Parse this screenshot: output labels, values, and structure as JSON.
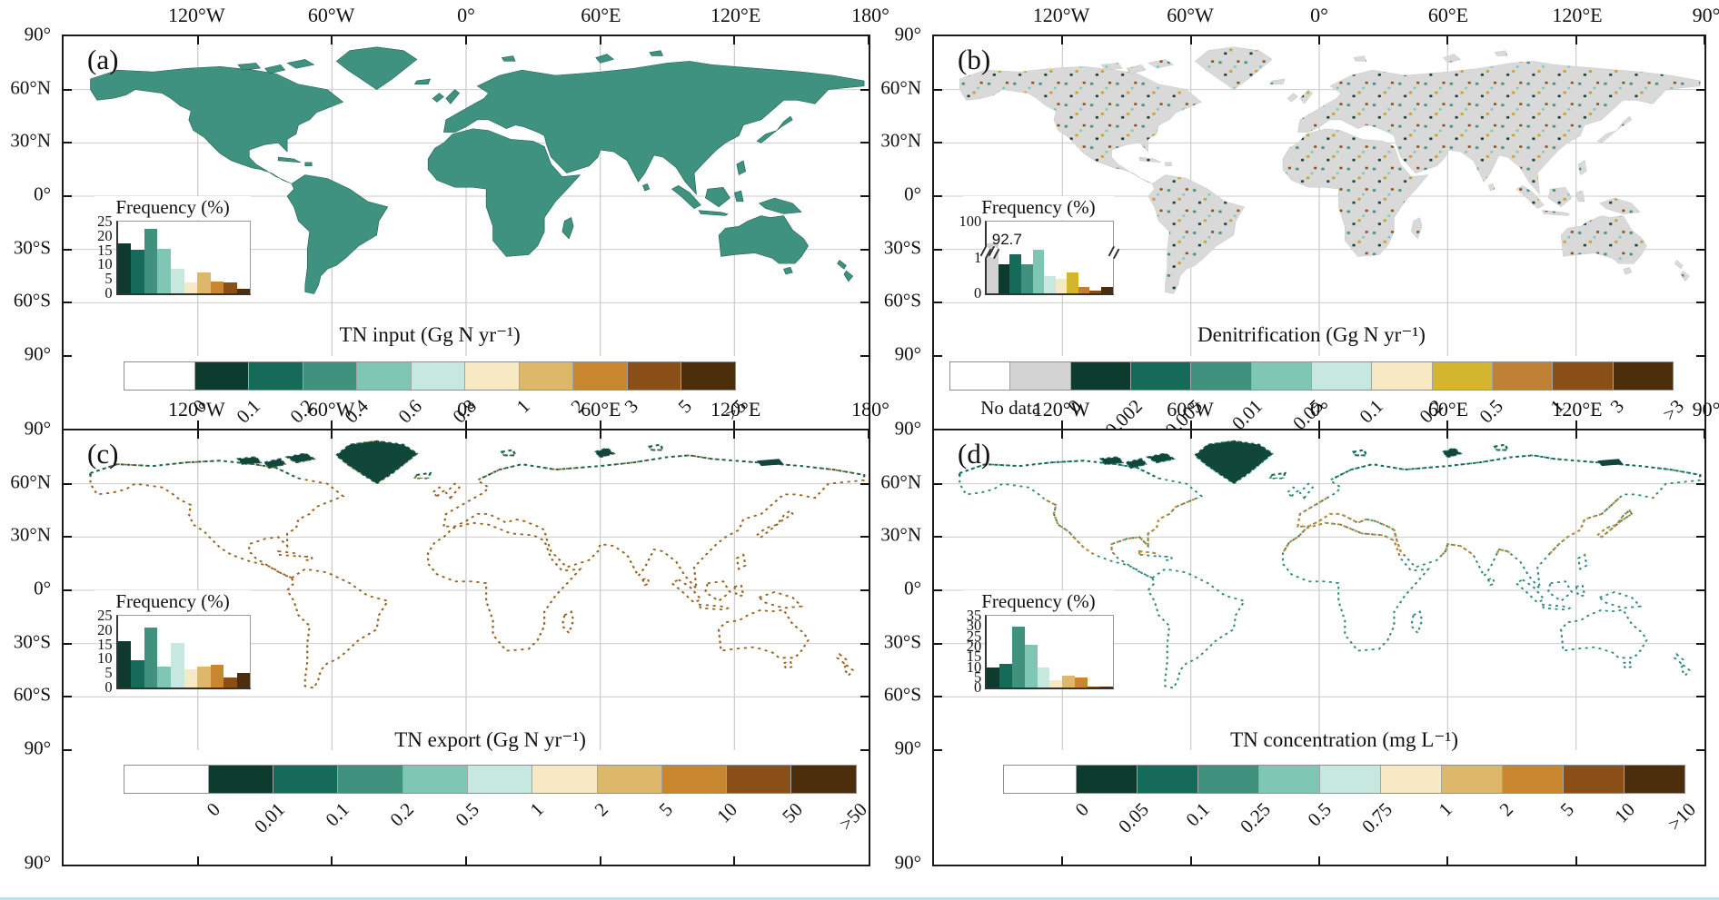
{
  "figure": {
    "background": "#ffffff",
    "bottom_rule_color": "#b7e1ee",
    "description_labels": [
      "(a)",
      "(b)",
      "(c)",
      "(d)"
    ]
  },
  "panels": [
    {
      "letter": "(a)",
      "top_axis": [
        "120°W",
        "60°W",
        "0°",
        "60°E",
        "120°E",
        "180°"
      ],
      "left_axis": [
        "90°",
        "60°N",
        "30°N",
        "0°",
        "30°S",
        "60°S",
        "90°"
      ],
      "inset": {
        "title": "Frequency (%)",
        "y_ticks": [
          "25",
          "20",
          "15",
          "10",
          "5",
          "0"
        ],
        "values": [
          17.3,
          15.2,
          22.5,
          15.6,
          8.7,
          3.8,
          7.2,
          4.2,
          3.8,
          1.5
        ],
        "unit_pct": 4,
        "bar_colors": [
          "#0d3b2d",
          "#156a5a",
          "#41917f",
          "#7fc6b4",
          "#c6e8de",
          "#f6e9c4",
          "#ddb76a",
          "#c8862f",
          "#8a4f16",
          "#4c2d0c"
        ]
      },
      "colorbar": {
        "title": "TN input (Gg N yr⁻¹)",
        "labels": [
          "0",
          "0.1",
          "0.2",
          "0.4",
          "0.6",
          "0.8",
          "1",
          "2",
          "3",
          "5",
          ">5"
        ],
        "lead_count": 1,
        "segments": [
          {
            "c": "#ffffff",
            "w": 1.3
          },
          {
            "c": "#0d3b2d",
            "w": 1
          },
          {
            "c": "#156a5a",
            "w": 1
          },
          {
            "c": "#41917f",
            "w": 1
          },
          {
            "c": "#7fc6b4",
            "w": 1
          },
          {
            "c": "#c6e8de",
            "w": 1
          },
          {
            "c": "#f6e9c4",
            "w": 1
          },
          {
            "c": "#ddb76a",
            "w": 1
          },
          {
            "c": "#c8862f",
            "w": 1
          },
          {
            "c": "#8a4f16",
            "w": 1
          },
          {
            "c": "#4c2d0c",
            "w": 1
          }
        ]
      }
    },
    {
      "letter": "(b)",
      "top_axis": [
        "120°W",
        "60°W",
        "0°",
        "60°E",
        "120°E",
        "90°"
      ],
      "left_axis": [
        "90°",
        "60°N",
        "30°N",
        "0°",
        "30°S",
        "60°S",
        "90°"
      ],
      "inset": {
        "title": "Frequency (%)",
        "y_ticks": [
          "100",
          "1",
          "0"
        ],
        "annotation": "92.7",
        "values": [
          92.7,
          0.9,
          1.2,
          0.9,
          1.35,
          0.55,
          0.45,
          0.65,
          0.2,
          0.1,
          0.2
        ],
        "unit_pct": 45,
        "cap_pct": 70,
        "bar_colors": [
          "#d2d2d2",
          "#0d3b2d",
          "#156a5a",
          "#41917f",
          "#7fc6b4",
          "#c6e8de",
          "#f6e9c4",
          "#d4b62e",
          "#c08035",
          "#8a4f16",
          "#4c2d0c"
        ]
      },
      "colorbar": {
        "title": "Denitrification (Gg N yr⁻¹)",
        "labels": [
          "0",
          "0.002",
          "0.005",
          "0.01",
          "0.05",
          "0.1",
          "0.2",
          "0.5",
          "1",
          "3",
          ">3"
        ],
        "lead_count": 2,
        "no_data": {
          "label": "No data",
          "center_units": 1.0
        },
        "segments": [
          {
            "c": "#ffffff",
            "w": 1
          },
          {
            "c": "#d2d2d2",
            "w": 1
          },
          {
            "c": "#0d3b2d",
            "w": 1
          },
          {
            "c": "#156a5a",
            "w": 1
          },
          {
            "c": "#41917f",
            "w": 1
          },
          {
            "c": "#7fc6b4",
            "w": 1
          },
          {
            "c": "#c6e8de",
            "w": 1
          },
          {
            "c": "#f6e9c4",
            "w": 1
          },
          {
            "c": "#d4b62e",
            "w": 1
          },
          {
            "c": "#c08035",
            "w": 1
          },
          {
            "c": "#8a4f16",
            "w": 1
          },
          {
            "c": "#4c2d0c",
            "w": 1
          }
        ]
      }
    },
    {
      "letter": "(c)",
      "top_axis": [
        "120°W",
        "60°W",
        "0°",
        "60°E",
        "120°E",
        "180°"
      ],
      "left_axis": [
        "90°",
        "60°N",
        "30°N",
        "0°",
        "30°S",
        "60°S",
        "90°"
      ],
      "inset": {
        "title": "Frequency (%)",
        "y_ticks": [
          "25",
          "20",
          "15",
          "10",
          "5",
          "0"
        ],
        "values": [
          16,
          9.5,
          21,
          7.2,
          15.5,
          6.5,
          7.2,
          7.8,
          3.5,
          5.2
        ],
        "unit_pct": 4,
        "bar_colors": [
          "#0d3b2d",
          "#156a5a",
          "#41917f",
          "#7fc6b4",
          "#c6e8de",
          "#f6e9c4",
          "#ddb76a",
          "#c8862f",
          "#8a4f16",
          "#4c2d0c"
        ]
      },
      "colorbar": {
        "title": "TN export (Gg N yr⁻¹)",
        "labels": [
          "0",
          "0.01",
          "0.1",
          "0.2",
          "0.5",
          "1",
          "2",
          "5",
          "10",
          "50",
          ">50"
        ],
        "lead_count": 1,
        "segments": [
          {
            "c": "#ffffff",
            "w": 1.3
          },
          {
            "c": "#0d3b2d",
            "w": 1
          },
          {
            "c": "#156a5a",
            "w": 1
          },
          {
            "c": "#41917f",
            "w": 1
          },
          {
            "c": "#7fc6b4",
            "w": 1
          },
          {
            "c": "#c6e8de",
            "w": 1
          },
          {
            "c": "#f6e9c4",
            "w": 1
          },
          {
            "c": "#ddb76a",
            "w": 1
          },
          {
            "c": "#c8862f",
            "w": 1
          },
          {
            "c": "#8a4f16",
            "w": 1
          },
          {
            "c": "#4c2d0c",
            "w": 1
          }
        ]
      }
    },
    {
      "letter": "(d)",
      "top_axis": [
        "120°W",
        "60°W",
        "0°",
        "60°E",
        "120°E",
        "90°"
      ],
      "left_axis": [
        "90°",
        "60°N",
        "30°N",
        "0°",
        "30°S",
        "60°S",
        "90°"
      ],
      "inset": {
        "title": "Frequency (%)",
        "y_ticks": [
          "35",
          "30",
          "25",
          "20",
          "15",
          "10",
          "5",
          "0"
        ],
        "values": [
          10,
          11.5,
          29.5,
          21,
          10,
          3.5,
          6,
          5,
          0.5,
          0.3
        ],
        "unit_pct": 2.857,
        "bar_colors": [
          "#0d3b2d",
          "#156a5a",
          "#41917f",
          "#7fc6b4",
          "#c6e8de",
          "#f6e9c4",
          "#ddb76a",
          "#c8862f",
          "#8a4f16",
          "#4c2d0c"
        ]
      },
      "colorbar": {
        "title": "TN concentration (mg L⁻¹)",
        "labels": [
          "0",
          "0.05",
          "0.1",
          "0.25",
          "0.5",
          "0.75",
          "1",
          "2",
          "5",
          "10",
          ">10"
        ],
        "lead_count": 1,
        "segments": [
          {
            "c": "#ffffff",
            "w": 1.2
          },
          {
            "c": "#0d3b2d",
            "w": 1
          },
          {
            "c": "#156a5a",
            "w": 1
          },
          {
            "c": "#41917f",
            "w": 1
          },
          {
            "c": "#7fc6b4",
            "w": 1
          },
          {
            "c": "#c6e8de",
            "w": 1
          },
          {
            "c": "#f6e9c4",
            "w": 1
          },
          {
            "c": "#ddb76a",
            "w": 1
          },
          {
            "c": "#c8862f",
            "w": 1
          },
          {
            "c": "#8a4f16",
            "w": 1
          },
          {
            "c": "#4c2d0c",
            "w": 1
          }
        ]
      }
    }
  ],
  "chart_data": [
    {
      "type": "bar",
      "panel": "a",
      "title": "Frequency (%)",
      "map_variable": "TN input (Gg N yr⁻¹)",
      "categories": [
        "0–0.1",
        "0.1–0.2",
        "0.2–0.4",
        "0.4–0.6",
        "0.6–0.8",
        "0.8–1",
        "1–2",
        "2–3",
        "3–5",
        ">5"
      ],
      "values": [
        17.3,
        15.2,
        22.5,
        15.6,
        8.7,
        3.8,
        7.2,
        4.2,
        3.8,
        1.5
      ],
      "ylabel": "Frequency (%)",
      "ylim": [
        0,
        25
      ],
      "class_bounds": [
        "0",
        "0.1",
        "0.2",
        "0.4",
        "0.6",
        "0.8",
        "1",
        "2",
        "3",
        "5",
        ">5"
      ],
      "colors": [
        "#0d3b2d",
        "#156a5a",
        "#41917f",
        "#7fc6b4",
        "#c6e8de",
        "#f6e9c4",
        "#ddb76a",
        "#c8862f",
        "#8a4f16",
        "#4c2d0c"
      ]
    },
    {
      "type": "bar",
      "panel": "b",
      "title": "Frequency (%)",
      "map_variable": "Denitrification (Gg N yr⁻¹)",
      "categories": [
        "No data",
        "0–0.002",
        "0.002–0.005",
        "0.005–0.01",
        "0.01–0.05",
        "0.05–0.1",
        "0.1–0.2",
        "0.2–0.5",
        "0.5–1",
        "1–3",
        ">3"
      ],
      "values": [
        92.7,
        0.9,
        1.2,
        0.9,
        1.35,
        0.55,
        0.45,
        0.65,
        0.2,
        0.1,
        0.2
      ],
      "ylabel": "Frequency (%)",
      "ylim": [
        0,
        100
      ],
      "axis_break": true,
      "annotation": "92.7",
      "class_bounds": [
        "0",
        "0.002",
        "0.005",
        "0.01",
        "0.05",
        "0.1",
        "0.2",
        "0.5",
        "1",
        "3",
        ">3"
      ],
      "colors": [
        "#d2d2d2",
        "#0d3b2d",
        "#156a5a",
        "#41917f",
        "#7fc6b4",
        "#c6e8de",
        "#f6e9c4",
        "#d4b62e",
        "#c08035",
        "#8a4f16",
        "#4c2d0c"
      ]
    },
    {
      "type": "bar",
      "panel": "c",
      "title": "Frequency (%)",
      "map_variable": "TN export (Gg N yr⁻¹)",
      "categories": [
        "0–0.01",
        "0.01–0.1",
        "0.1–0.2",
        "0.2–0.5",
        "0.5–1",
        "1–2",
        "2–5",
        "5–10",
        "10–50",
        ">50"
      ],
      "values": [
        16,
        9.5,
        21,
        7.2,
        15.5,
        6.5,
        7.2,
        7.8,
        3.5,
        5.2
      ],
      "ylabel": "Frequency (%)",
      "ylim": [
        0,
        25
      ],
      "class_bounds": [
        "0",
        "0.01",
        "0.1",
        "0.2",
        "0.5",
        "1",
        "2",
        "5",
        "10",
        "50",
        ">50"
      ],
      "colors": [
        "#0d3b2d",
        "#156a5a",
        "#41917f",
        "#7fc6b4",
        "#c6e8de",
        "#f6e9c4",
        "#ddb76a",
        "#c8862f",
        "#8a4f16",
        "#4c2d0c"
      ]
    },
    {
      "type": "bar",
      "panel": "d",
      "title": "Frequency (%)",
      "map_variable": "TN concentration (mg L⁻¹)",
      "categories": [
        "0–0.05",
        "0.05–0.1",
        "0.1–0.25",
        "0.25–0.5",
        "0.5–0.75",
        "0.75–1",
        "1–2",
        "2–5",
        "5–10",
        ">10"
      ],
      "values": [
        10,
        11.5,
        29.5,
        21,
        10,
        3.5,
        6,
        5,
        0.5,
        0.3
      ],
      "ylabel": "Frequency (%)",
      "ylim": [
        0,
        35
      ],
      "class_bounds": [
        "0",
        "0.05",
        "0.1",
        "0.25",
        "0.5",
        "0.75",
        "1",
        "2",
        "5",
        "10",
        ">10"
      ],
      "colors": [
        "#0d3b2d",
        "#156a5a",
        "#41917f",
        "#7fc6b4",
        "#c6e8de",
        "#f6e9c4",
        "#ddb76a",
        "#c8862f",
        "#8a4f16",
        "#4c2d0c"
      ]
    }
  ]
}
